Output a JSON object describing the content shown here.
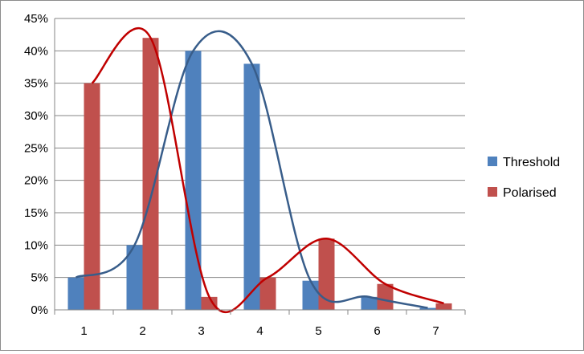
{
  "chart_data": {
    "type": "bar",
    "categories": [
      "1",
      "2",
      "3",
      "4",
      "5",
      "6",
      "7"
    ],
    "series": [
      {
        "name": "Threshold",
        "color": "#4f81bd",
        "line_color": "#385d8a",
        "values": [
          5,
          10,
          40,
          38,
          4.5,
          2,
          0.3
        ],
        "smooth_line": [
          [
            1,
            5
          ],
          [
            2,
            10
          ],
          [
            3,
            40
          ],
          [
            4,
            38
          ],
          [
            5,
            4.5
          ],
          [
            6,
            2
          ],
          [
            7,
            0.3
          ]
        ]
      },
      {
        "name": "Polarised",
        "color": "#c0504d",
        "line_color": "#c00000",
        "values": [
          35,
          42,
          2,
          5,
          11,
          4,
          1
        ],
        "smooth_line": [
          [
            1,
            35
          ],
          [
            2,
            42
          ],
          [
            3,
            2
          ],
          [
            4,
            5
          ],
          [
            5,
            11
          ],
          [
            6,
            4
          ],
          [
            7,
            1
          ]
        ]
      }
    ],
    "y_ticks": [
      "0%",
      "5%",
      "10%",
      "15%",
      "20%",
      "25%",
      "30%",
      "35%",
      "40%",
      "45%"
    ],
    "ylim": [
      0,
      45
    ],
    "title": "",
    "xlabel": "",
    "ylabel": "",
    "grid": true,
    "legend_position": "right"
  }
}
